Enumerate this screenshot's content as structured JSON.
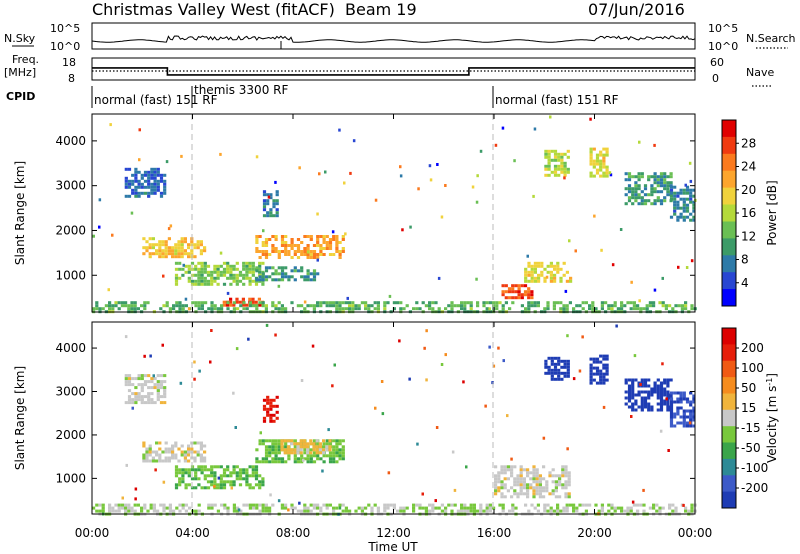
{
  "header": {
    "title": "Christmas Valley West (fitACF)",
    "beam": "Beam 19",
    "date": "07/Jun/2016"
  },
  "summary_panels": {
    "nsky": {
      "label": "N.Sky",
      "ticks": [
        "10^5",
        "10^0"
      ]
    },
    "nsearch": {
      "label": "N.Search",
      "ticks": [
        "10^5",
        "10^0"
      ]
    },
    "freq": {
      "label": "Freq.",
      "unit": "[MHz]",
      "ticks": [
        "18",
        "8"
      ],
      "value_profile": [
        [
          0,
          13.5
        ],
        [
          3.0,
          13.5
        ],
        [
          3.0,
          10.3
        ],
        [
          15.0,
          10.3
        ],
        [
          15.0,
          13.5
        ],
        [
          24.0,
          13.5
        ]
      ]
    },
    "nave": {
      "label": "Nave",
      "ticks": [
        "60",
        "0"
      ]
    },
    "cpid": {
      "label": "CPID",
      "segments": [
        {
          "name": "normal (fast) 151 RF",
          "start_hour": 0
        },
        {
          "name": "themis 3300 RF",
          "start_hour": 4
        },
        {
          "name": "normal (fast) 151 RF",
          "start_hour": 16
        }
      ]
    }
  },
  "chart_data": [
    {
      "type": "heatmap",
      "name": "power",
      "ylabel": "Slant Range [km]",
      "xlim": [
        0,
        24
      ],
      "ylim": [
        180,
        4600
      ],
      "yticks": [
        "1000",
        "2000",
        "3000",
        "4000"
      ],
      "colorbar": {
        "label": "Power [dB]",
        "ticks": [
          "28",
          "24",
          "20",
          "16",
          "12",
          "8",
          "4"
        ],
        "colors": [
          "#0000ff",
          "#2846d2",
          "#2d7aa8",
          "#3c9b68",
          "#6abf54",
          "#b4d93a",
          "#f0d23c",
          "#fca52d",
          "#fb7a1e",
          "#f03a10",
          "#e00000"
        ]
      },
      "features": [
        {
          "hours": [
            1.3,
            2.9
          ],
          "range_km": [
            2750,
            3400
          ],
          "value": 6
        },
        {
          "hours": [
            2.0,
            4.5
          ],
          "range_km": [
            1400,
            1850
          ],
          "value": 20
        },
        {
          "hours": [
            3.3,
            6.8
          ],
          "range_km": [
            800,
            1300
          ],
          "value": 14
        },
        {
          "hours": [
            5.2,
            6.8
          ],
          "range_km": [
            300,
            500
          ],
          "value": 27
        },
        {
          "hours": [
            6.5,
            10.0
          ],
          "range_km": [
            1400,
            1900
          ],
          "value": 22
        },
        {
          "hours": [
            6.8,
            7.4
          ],
          "range_km": [
            2300,
            2900
          ],
          "value": 8
        },
        {
          "hours": [
            6.5,
            9.0
          ],
          "range_km": [
            900,
            1200
          ],
          "value": 10
        },
        {
          "hours": [
            16.3,
            17.5
          ],
          "range_km": [
            500,
            800
          ],
          "value": 27
        },
        {
          "hours": [
            17.2,
            19.0
          ],
          "range_km": [
            850,
            1300
          ],
          "value": 18
        },
        {
          "hours": [
            18.0,
            19.0
          ],
          "range_km": [
            3250,
            3800
          ],
          "value": 16
        },
        {
          "hours": [
            19.8,
            20.5
          ],
          "range_km": [
            3200,
            3850
          ],
          "value": 18
        },
        {
          "hours": [
            21.2,
            23.0
          ],
          "range_km": [
            2600,
            3300
          ],
          "value": 10
        },
        {
          "hours": [
            23.0,
            24.0
          ],
          "range_km": [
            2200,
            3000
          ],
          "value": 8
        },
        {
          "hours": [
            0.0,
            24.0
          ],
          "range_km": [
            180,
            420
          ],
          "value": 12
        }
      ]
    },
    {
      "type": "heatmap",
      "name": "velocity",
      "ylabel": "Slant Range [km]",
      "xlabel": "Time UT",
      "xlim": [
        0,
        24
      ],
      "ylim": [
        180,
        4600
      ],
      "yticks": [
        "1000",
        "2000",
        "3000",
        "4000"
      ],
      "xticks": [
        "00:00",
        "04:00",
        "08:00",
        "12:00",
        "16:00",
        "20:00",
        "00:00"
      ],
      "colorbar": {
        "label": "Velocity [m s",
        "label_superscript": "-1",
        "label_end": "]",
        "ticks": [
          "200",
          "100",
          "50",
          "15",
          "-15",
          "-50",
          "-100",
          "-200"
        ],
        "colors": [
          "#1e3cb4",
          "#3c5ac8",
          "#2d8a96",
          "#3aa54a",
          "#78c83c",
          "#c8c8c8",
          "#f0b43c",
          "#f58c1e",
          "#f05a14",
          "#e61e0a",
          "#dc0000"
        ]
      },
      "features": [
        {
          "hours": [
            1.3,
            2.9
          ],
          "range_km": [
            2750,
            3400
          ],
          "value": 0
        },
        {
          "hours": [
            2.0,
            4.5
          ],
          "range_km": [
            1400,
            1850
          ],
          "value": 0
        },
        {
          "hours": [
            3.3,
            6.8
          ],
          "range_km": [
            800,
            1300
          ],
          "value": -60
        },
        {
          "hours": [
            6.5,
            10.0
          ],
          "range_km": [
            1400,
            1900
          ],
          "value": -60
        },
        {
          "hours": [
            7.5,
            9.5
          ],
          "range_km": [
            1600,
            1900
          ],
          "value": 40
        },
        {
          "hours": [
            6.8,
            7.4
          ],
          "range_km": [
            2300,
            2900
          ],
          "value": 200
        },
        {
          "hours": [
            16.0,
            19.0
          ],
          "range_km": [
            600,
            1300
          ],
          "value": 0
        },
        {
          "hours": [
            18.0,
            19.0
          ],
          "range_km": [
            3250,
            3800
          ],
          "value": -250
        },
        {
          "hours": [
            19.8,
            20.5
          ],
          "range_km": [
            3200,
            3850
          ],
          "value": -250
        },
        {
          "hours": [
            21.2,
            23.0
          ],
          "range_km": [
            2600,
            3300
          ],
          "value": -250
        },
        {
          "hours": [
            23.0,
            24.0
          ],
          "range_km": [
            2200,
            3000
          ],
          "value": -200
        },
        {
          "hours": [
            0.0,
            24.0
          ],
          "range_km": [
            180,
            420
          ],
          "value": -20
        }
      ]
    }
  ]
}
